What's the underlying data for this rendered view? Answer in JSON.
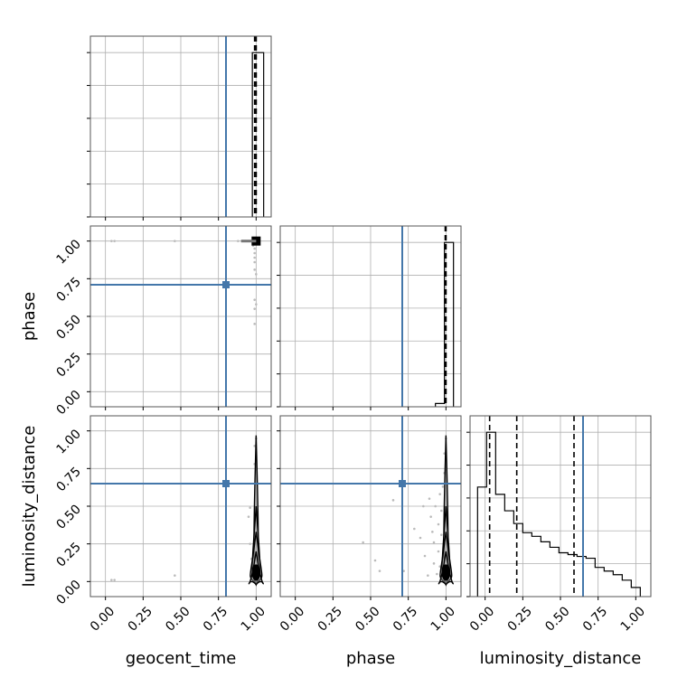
{
  "chart_data": {
    "type": "corner",
    "grid": true,
    "parameters": [
      "geocent_time",
      "phase",
      "luminosity_distance"
    ],
    "axis_labels": [
      "geocent_time",
      "phase",
      "luminosity_distance"
    ],
    "ticks": [
      0.0,
      0.25,
      0.5,
      0.75,
      1.0
    ],
    "tick_labels": [
      "0.00",
      "0.25",
      "0.50",
      "0.75",
      "1.00"
    ],
    "range": [
      -0.1,
      1.1
    ],
    "truths": {
      "geocent_time": 0.8,
      "phase": 0.71,
      "luminosity_distance": 0.65
    },
    "truth_color": "#4477aa",
    "line_color": "#000000",
    "scatter_color": "#bbbbbb",
    "histograms": [
      {
        "parameter": "geocent_time",
        "bin_edges": [
          0.975,
          1.05
        ],
        "counts": [
          1.0
        ],
        "quantile_lines": [
          0.99,
          1.0,
          1.0
        ]
      },
      {
        "parameter": "phase",
        "bin_edges": [
          0.93,
          0.99,
          1.05
        ],
        "counts": [
          0.02,
          1.0
        ],
        "quantile_lines": [
          0.995,
          1.0,
          1.0
        ]
      },
      {
        "parameter": "luminosity_distance",
        "bin_edges": [
          -0.05,
          0.01,
          0.07,
          0.13,
          0.19,
          0.25,
          0.31,
          0.37,
          0.43,
          0.49,
          0.55,
          0.61,
          0.67,
          0.73,
          0.79,
          0.85,
          0.91,
          0.97,
          1.03
        ],
        "counts": [
          0.6,
          0.9,
          0.56,
          0.47,
          0.4,
          0.35,
          0.33,
          0.3,
          0.27,
          0.24,
          0.23,
          0.22,
          0.21,
          0.16,
          0.14,
          0.12,
          0.09,
          0.05
        ],
        "quantile_lines": [
          0.03,
          0.21,
          0.59
        ]
      }
    ],
    "scatter": [
      {
        "x_param": "geocent_time",
        "y_param": "phase",
        "points": [
          [
            0.04,
            1.0
          ],
          [
            0.06,
            1.0
          ],
          [
            0.46,
            1.0
          ],
          [
            0.88,
            1.0
          ],
          [
            0.91,
            1.0
          ],
          [
            0.93,
            1.0
          ],
          [
            0.95,
            1.0
          ],
          [
            0.97,
            1.0
          ],
          [
            0.98,
            0.97
          ],
          [
            0.99,
            0.95
          ],
          [
            0.99,
            0.92
          ],
          [
            0.99,
            0.89
          ],
          [
            0.99,
            0.86
          ],
          [
            0.99,
            0.81
          ],
          [
            1.0,
            0.78
          ],
          [
            0.99,
            0.61
          ],
          [
            1.0,
            0.58
          ],
          [
            0.99,
            0.55
          ],
          [
            0.99,
            0.45
          ]
        ],
        "density_peak": [
          1.0,
          1.0
        ]
      },
      {
        "x_param": "geocent_time",
        "y_param": "luminosity_distance",
        "points": [
          [
            0.04,
            0.01
          ],
          [
            0.06,
            0.01
          ],
          [
            0.46,
            0.04
          ],
          [
            0.95,
            0.43
          ],
          [
            0.96,
            0.49
          ],
          [
            0.96,
            0.25
          ],
          [
            0.97,
            0.15
          ],
          [
            0.98,
            0.03
          ],
          [
            0.99,
            0.78
          ],
          [
            0.99,
            0.9
          ],
          [
            1.0,
            0.95
          ]
        ],
        "density_peak": [
          1.0,
          0.06
        ]
      },
      {
        "x_param": "phase",
        "y_param": "luminosity_distance",
        "points": [
          [
            0.45,
            0.26
          ],
          [
            0.53,
            0.14
          ],
          [
            0.56,
            0.07
          ],
          [
            0.65,
            0.54
          ],
          [
            0.72,
            0.07
          ],
          [
            0.79,
            0.35
          ],
          [
            0.83,
            0.29
          ],
          [
            0.85,
            0.5
          ],
          [
            0.86,
            0.17
          ],
          [
            0.88,
            0.04
          ],
          [
            0.89,
            0.55
          ],
          [
            0.9,
            0.43
          ],
          [
            0.91,
            0.33
          ],
          [
            0.92,
            0.26
          ],
          [
            0.92,
            0.12
          ],
          [
            0.93,
            0.5
          ],
          [
            0.94,
            0.05
          ],
          [
            0.95,
            0.38
          ],
          [
            0.95,
            0.2
          ],
          [
            0.96,
            0.58
          ],
          [
            0.96,
            0.1
          ],
          [
            0.97,
            0.47
          ],
          [
            0.97,
            0.31
          ],
          [
            0.98,
            0.63
          ],
          [
            0.98,
            0.02
          ],
          [
            0.99,
            0.85
          ],
          [
            0.99,
            0.72
          ],
          [
            1.0,
            0.95
          ]
        ],
        "density_peak": [
          1.0,
          0.06
        ]
      }
    ]
  }
}
